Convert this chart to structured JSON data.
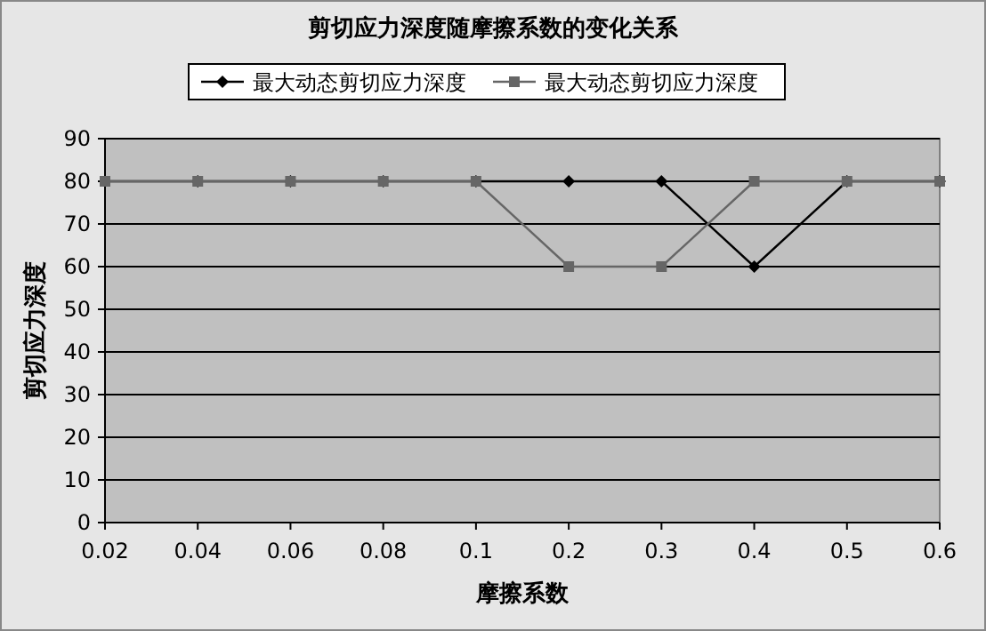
{
  "chart_data": {
    "type": "line",
    "title": "剪切应力深度随摩擦系数的变化关系",
    "xlabel": "摩擦系数",
    "ylabel": "剪切应力深度",
    "categories": [
      "0.02",
      "0.04",
      "0.06",
      "0.08",
      "0.1",
      "0.2",
      "0.3",
      "0.4",
      "0.5",
      "0.6"
    ],
    "series": [
      {
        "name": "最大动态剪切应力深度",
        "color": "#000000",
        "marker": "diamond",
        "values": [
          80,
          80,
          80,
          80,
          80,
          80,
          80,
          60,
          80,
          80
        ]
      },
      {
        "name": "最大动态剪切应力深度",
        "color": "#666666",
        "marker": "square",
        "values": [
          80,
          80,
          80,
          80,
          80,
          60,
          60,
          80,
          80,
          80
        ]
      }
    ],
    "ylim": [
      0,
      90
    ],
    "yticks": [
      0,
      10,
      20,
      30,
      40,
      50,
      60,
      70,
      80,
      90
    ],
    "grid": "y",
    "legend": "top",
    "line_style": "solid"
  }
}
